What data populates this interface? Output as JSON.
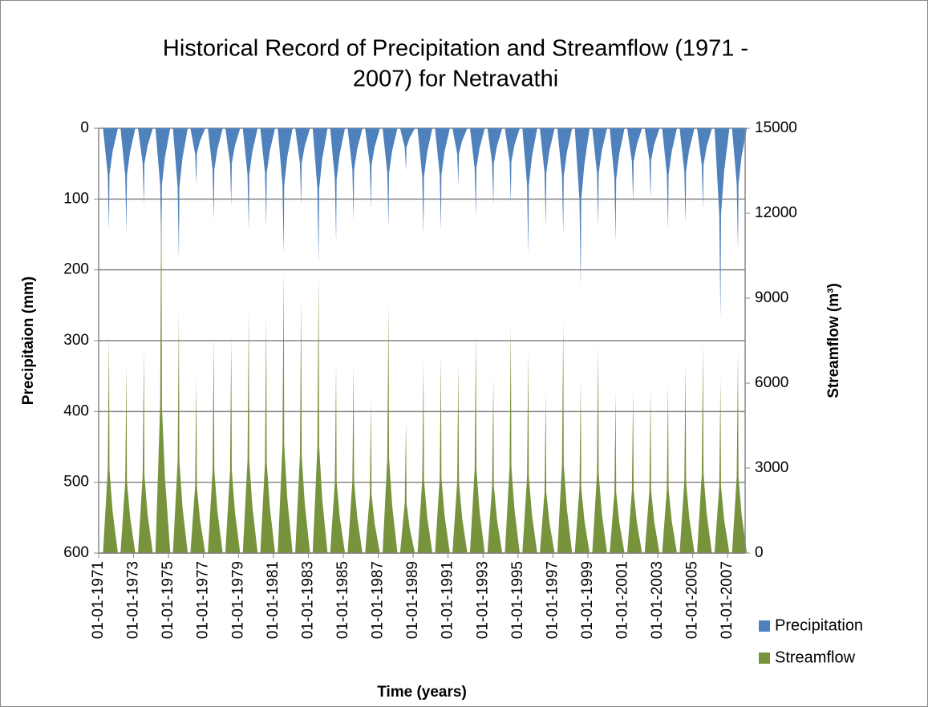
{
  "chart_data": {
    "type": "spike",
    "title": "Historical Record of Precipitation and Streamflow (1971 - 2007) for Netravathi",
    "title_lines": [
      "Historical Record of Precipitation and Streamflow (1971 -",
      "2007) for Netravathi"
    ],
    "x_label": "Time (years)",
    "y_label": "Precipitaion (mm)",
    "y2_label": "Streamflow (m³)",
    "xlim": [
      1971,
      2008
    ],
    "xticks": [
      {
        "value": 1971,
        "label": "01-01-1971"
      },
      {
        "value": 1973,
        "label": "01-01-1973"
      },
      {
        "value": 1975,
        "label": "01-01-1975"
      },
      {
        "value": 1977,
        "label": "01-01-1977"
      },
      {
        "value": 1979,
        "label": "01-01-1979"
      },
      {
        "value": 1981,
        "label": "01-01-1981"
      },
      {
        "value": 1983,
        "label": "01-01-1983"
      },
      {
        "value": 1985,
        "label": "01-01-1985"
      },
      {
        "value": 1987,
        "label": "01-01-1987"
      },
      {
        "value": 1989,
        "label": "01-01-1989"
      },
      {
        "value": 1991,
        "label": "01-01-1991"
      },
      {
        "value": 1993,
        "label": "01-01-1993"
      },
      {
        "value": 1995,
        "label": "01-01-1995"
      },
      {
        "value": 1997,
        "label": "01-01-1997"
      },
      {
        "value": 1999,
        "label": "01-01-1999"
      },
      {
        "value": 2001,
        "label": "01-01-2001"
      },
      {
        "value": 2003,
        "label": "01-01-2003"
      },
      {
        "value": 2005,
        "label": "01-01-2005"
      },
      {
        "value": 2007,
        "label": "01-01-2007"
      }
    ],
    "ylim": [
      0,
      600
    ],
    "y_inverted": true,
    "yticks": [
      0,
      100,
      200,
      300,
      400,
      500,
      600
    ],
    "y2lim": [
      0,
      15000
    ],
    "y2ticks": [
      0,
      3000,
      6000,
      9000,
      12000,
      15000
    ],
    "grid": true,
    "legend": "bottom-right",
    "x": [
      1971.6,
      1972.6,
      1973.6,
      1974.6,
      1975.6,
      1976.6,
      1977.6,
      1978.6,
      1979.6,
      1980.6,
      1981.6,
      1982.6,
      1983.6,
      1984.6,
      1985.6,
      1986.6,
      1987.6,
      1988.6,
      1989.6,
      1990.6,
      1991.6,
      1992.6,
      1993.6,
      1994.6,
      1995.6,
      1996.6,
      1997.6,
      1998.6,
      1999.6,
      2000.6,
      2001.6,
      2002.6,
      2003.6,
      2004.6,
      2005.6,
      2006.6,
      2007.6
    ],
    "series": [
      {
        "name": "Precipitation",
        "color": "#4f81bd",
        "axis": "y",
        "values": [
          145,
          148,
          110,
          178,
          185,
          80,
          130,
          110,
          145,
          140,
          178,
          110,
          190,
          160,
          130,
          115,
          140,
          60,
          152,
          145,
          80,
          125,
          110,
          105,
          178,
          140,
          150,
          225,
          140,
          160,
          105,
          100,
          145,
          135,
          115,
          270,
          175
        ]
      },
      {
        "name": "Streamflow",
        "color": "#77933c",
        "axis": "y2",
        "values": [
          7700,
          6650,
          7200,
          13700,
          8500,
          6200,
          7700,
          7650,
          8600,
          8400,
          10000,
          9050,
          9900,
          6650,
          6650,
          5400,
          8800,
          4650,
          6800,
          6950,
          6650,
          7800,
          6200,
          8050,
          7100,
          5650,
          8200,
          6100,
          7350,
          5650,
          5800,
          5800,
          5950,
          6650,
          7350,
          6200,
          7100
        ]
      }
    ]
  }
}
